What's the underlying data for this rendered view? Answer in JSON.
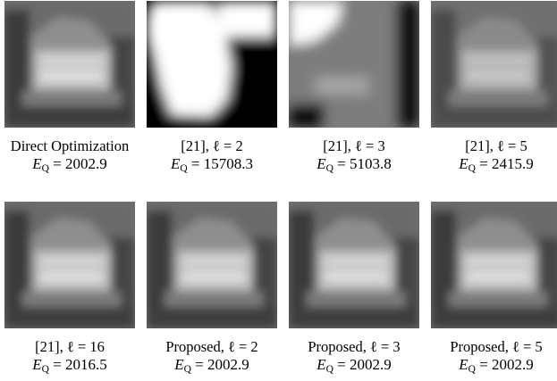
{
  "figure": {
    "panels": [
      {
        "caption_line1": "Direct Optimization",
        "E_value": "2002.9",
        "image": "blurred-castle-grayscale"
      },
      {
        "caption_line1": "[21], ℓ = 2",
        "E_value": "15708.3",
        "image": "castle-quantized-two-levels"
      },
      {
        "caption_line1": "[21], ℓ = 3",
        "E_value": "5103.8",
        "image": "castle-quantized-three-levels"
      },
      {
        "caption_line1": "[21], ℓ = 5",
        "E_value": "2415.9",
        "image": "castle-quantized-five-levels"
      },
      {
        "caption_line1": "[21], ℓ = 16",
        "E_value": "2016.5",
        "image": "blurred-castle-grayscale"
      },
      {
        "caption_line1": "Proposed, ℓ = 2",
        "E_value": "2002.9",
        "image": "blurred-castle-grayscale"
      },
      {
        "caption_line1": "Proposed, ℓ = 3",
        "E_value": "2002.9",
        "image": "blurred-castle-grayscale"
      },
      {
        "caption_line1": "Proposed, ℓ = 5",
        "E_value": "2002.9",
        "image": "blurred-castle-grayscale"
      }
    ],
    "energy_symbol": "E",
    "energy_subscript": "Q",
    "equals": "="
  }
}
